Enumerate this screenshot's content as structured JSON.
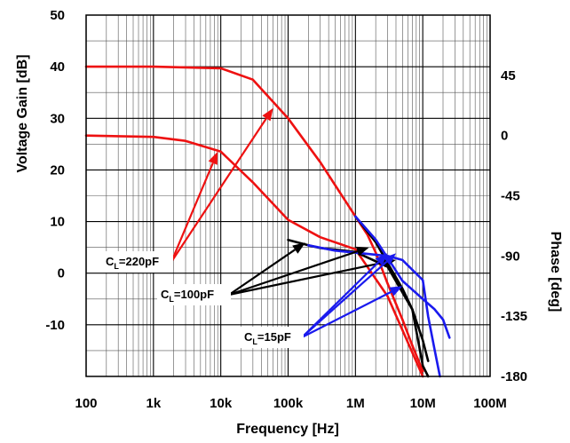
{
  "chart_data": {
    "type": "line",
    "xlabel": "Frequency [Hz]",
    "ylabel": "Voltage Gain [dB]",
    "y2label": "Phase [deg]",
    "xscale": "log",
    "xlim": [
      100,
      100000000
    ],
    "ylim": [
      -20,
      50
    ],
    "y2lim": [
      -180,
      90
    ],
    "grid": true,
    "x_ticks": [
      {
        "value": 100,
        "label": "100"
      },
      {
        "value": 1000,
        "label": "1k"
      },
      {
        "value": 10000,
        "label": "10k"
      },
      {
        "value": 100000,
        "label": "100k"
      },
      {
        "value": 1000000,
        "label": "1M"
      },
      {
        "value": 10000000,
        "label": "10M"
      },
      {
        "value": 100000000,
        "label": "100M"
      }
    ],
    "y_ticks": [
      {
        "value": 50,
        "label": "50"
      },
      {
        "value": 40,
        "label": "40"
      },
      {
        "value": 30,
        "label": "30"
      },
      {
        "value": 20,
        "label": "20"
      },
      {
        "value": 10,
        "label": "10"
      },
      {
        "value": 0,
        "label": "0"
      },
      {
        "value": -10,
        "label": "-10"
      }
    ],
    "y2_ticks": [
      {
        "value": 45,
        "label": "45"
      },
      {
        "value": 0,
        "label": "0"
      },
      {
        "value": -45,
        "label": "-45"
      },
      {
        "value": -90,
        "label": "-90"
      },
      {
        "value": -135,
        "label": "-135"
      },
      {
        "value": -180,
        "label": "-180"
      }
    ],
    "colors": {
      "cl_220pF": "#ee1111",
      "cl_100pF": "#000000",
      "cl_15pF": "#1a1aee"
    },
    "series": [
      {
        "name": "C_L=220pF gain",
        "color": "#ee1111",
        "axis": "left",
        "x": [
          100,
          1000,
          10000,
          30000,
          100000,
          300000,
          1000000,
          1500000,
          2000000,
          3000000,
          5000000,
          7000000,
          10000000
        ],
        "y": [
          40,
          40,
          39.7,
          37.5,
          30,
          21.5,
          11,
          7.5,
          4,
          -2,
          -9,
          -14,
          -19
        ]
      },
      {
        "name": "C_L=100pF gain",
        "color": "#000000",
        "axis": "left",
        "x": [
          1000000,
          2000000,
          3000000,
          5000000,
          7000000,
          10000000,
          12000000
        ],
        "y": [
          11,
          6,
          2,
          -3,
          -7,
          -13,
          -17
        ]
      },
      {
        "name": "C_L=15pF gain",
        "color": "#1a1aee",
        "axis": "left",
        "x": [
          1000000,
          2000000,
          3000000,
          5000000,
          10000000,
          15000000,
          20000000,
          25000000
        ],
        "y": [
          11,
          6.5,
          3,
          -1.5,
          -5,
          -7,
          -9,
          -12.5
        ]
      },
      {
        "name": "C_L=220pF phase",
        "color": "#ee1111",
        "axis": "right",
        "x": [
          100,
          1000,
          3000,
          10000,
          30000,
          100000,
          300000,
          1000000,
          3000000,
          10000000
        ],
        "y": [
          0,
          -1,
          -4,
          -12,
          -35,
          -63,
          -76,
          -85,
          -120,
          -180
        ]
      },
      {
        "name": "C_L=100pF phase",
        "color": "#000000",
        "axis": "right",
        "x": [
          100000,
          200000,
          300000,
          1000000,
          3000000,
          7000000,
          10000000,
          12000000
        ],
        "y": [
          -78,
          -82,
          -84,
          -87,
          -98,
          -130,
          -172,
          -180
        ]
      },
      {
        "name": "C_L=15pF phase",
        "color": "#1a1aee",
        "axis": "right",
        "x": [
          200000,
          500000,
          1000000,
          3000000,
          5000000,
          10000000,
          12000000,
          15000000,
          18000000
        ],
        "y": [
          -82,
          -86,
          -87.5,
          -90,
          -93,
          -108,
          -135,
          -160,
          -180
        ]
      }
    ],
    "annotations": [
      {
        "id": "cl220",
        "label": "C",
        "sub": "L",
        "rest": "=220pF",
        "color": "#ee1111"
      },
      {
        "id": "cl100",
        "label": "C",
        "sub": "L",
        "rest": "=100pF",
        "color": "#000000"
      },
      {
        "id": "cl15",
        "label": "C",
        "sub": "L",
        "rest": "=15pF",
        "color": "#1a1aee"
      }
    ]
  }
}
